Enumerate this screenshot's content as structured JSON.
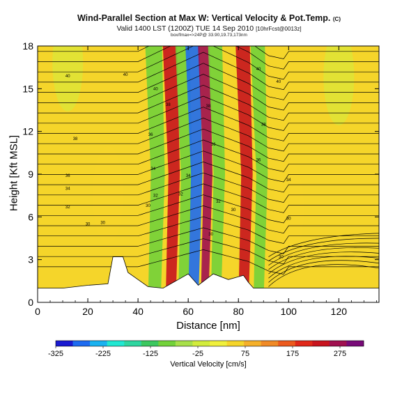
{
  "chart_data": {
    "type": "heatmap",
    "title": "Wind-Parallel Section at Max W: Vertical Velocity & Pot.Temp.",
    "title_mark": "(C)",
    "subtitle_main": "Valid 1400 LST (1200Z) TUE 14 Sep 2010",
    "subtitle_extra": "[10hrFcst@0013z]",
    "subtitle_small": "box/fmax=>24P@ 33.90,19.73,173nm",
    "xlabel": "Distance [nm]",
    "ylabel": "Height [Kft MSL]",
    "xlim": [
      0,
      136
    ],
    "ylim": [
      0,
      18
    ],
    "x_ticks": [
      "0",
      "20",
      "40",
      "60",
      "80",
      "100",
      "120"
    ],
    "y_ticks": [
      "0",
      "3",
      "6",
      "9",
      "12",
      "15",
      "18"
    ],
    "colorbar": {
      "label": "Vertical Velocity [cm/s]",
      "range": [
        -325,
        325
      ],
      "tick_labels": [
        "-325",
        "-225",
        "-125",
        "-25",
        "75",
        "175",
        "275"
      ],
      "colors": [
        "#1a1ad0",
        "#1e6bf0",
        "#19b2f0",
        "#21e8d2",
        "#2fd6a0",
        "#3cc860",
        "#73d23a",
        "#a8e04a",
        "#d2ec3c",
        "#f0f03c",
        "#f5d52a",
        "#f5b02a",
        "#f08a26",
        "#ec5a1e",
        "#e0281a",
        "#c8141e",
        "#a01050",
        "#780a78"
      ]
    },
    "velocity_bands": [
      {
        "x": 44,
        "w": 5,
        "value": -75
      },
      {
        "x": 51,
        "w": 4,
        "value": 225
      },
      {
        "x": 56,
        "w": 4,
        "value": -100
      },
      {
        "x": 60,
        "w": 4,
        "value": -275
      },
      {
        "x": 65,
        "w": 3,
        "value": 275
      },
      {
        "x": 69,
        "w": 4,
        "value": -75
      },
      {
        "x": 80,
        "w": 4,
        "value": 225
      },
      {
        "x": 86,
        "w": 4,
        "value": -100
      }
    ],
    "terrain": [
      [
        0,
        1
      ],
      [
        10,
        1
      ],
      [
        20,
        1.2
      ],
      [
        28,
        1.3
      ],
      [
        30,
        3.2
      ],
      [
        34,
        3.2
      ],
      [
        36,
        2.1
      ],
      [
        40,
        1.6
      ],
      [
        44,
        1.1
      ],
      [
        50,
        1
      ],
      [
        56,
        1.6
      ],
      [
        60,
        2
      ],
      [
        64,
        1.2
      ],
      [
        70,
        2
      ],
      [
        76,
        1.6
      ],
      [
        82,
        1.9
      ],
      [
        84,
        1.4
      ],
      [
        86,
        1
      ],
      [
        136,
        1
      ]
    ],
    "contour_labels": [
      "40",
      "40",
      "40",
      "40",
      "40",
      "38",
      "38",
      "38",
      "38",
      "36",
      "36",
      "36",
      "36",
      "34",
      "34",
      "34",
      "34",
      "32",
      "32",
      "32",
      "32",
      "30",
      "30",
      "30",
      "30",
      "30",
      "30",
      "30"
    ]
  }
}
